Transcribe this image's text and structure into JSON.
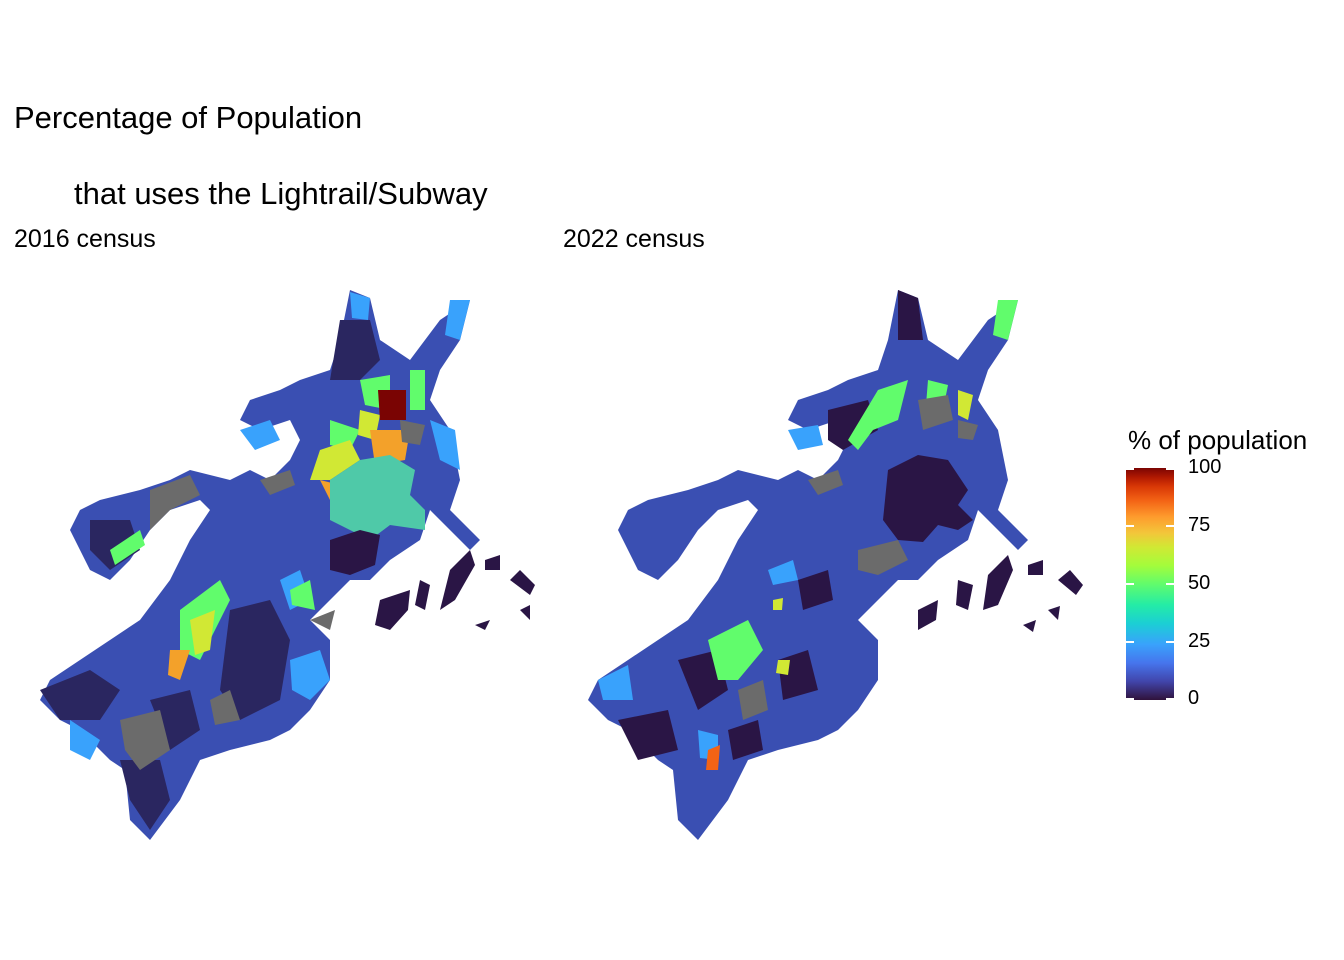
{
  "title": {
    "line1": "Percentage of Population",
    "line2": "that uses the Lightrail/Subway"
  },
  "panels": [
    {
      "label": "2016 census"
    },
    {
      "label": "2022 census"
    }
  ],
  "legend": {
    "title": "% of population",
    "ticks": [
      "100",
      "75",
      "50",
      "25",
      "0"
    ],
    "colormap": "turbo",
    "na_color": "#6b6b6b"
  },
  "colors": {
    "low": "#30123b",
    "mid_low": "#3b62d0",
    "light_blue": "#39a2fc",
    "green": "#61fc6c",
    "yellow": "#d1e834",
    "orange": "#f3a12a",
    "high": "#7a0403",
    "teal": "#4fc9a8",
    "na": "#6b6b6b"
  }
}
